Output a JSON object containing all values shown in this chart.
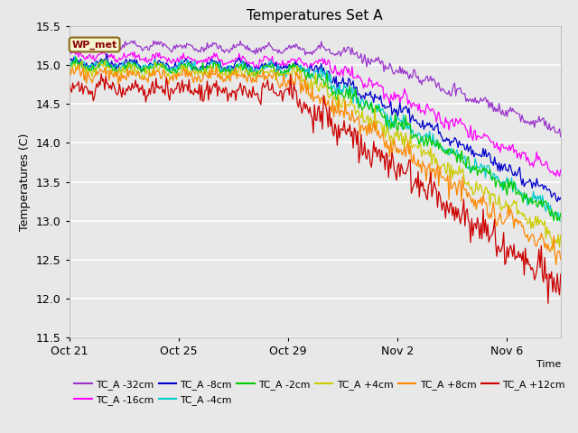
{
  "title": "Temperatures Set A",
  "xlabel": "Time",
  "ylabel": "Temperatures (C)",
  "ylim": [
    11.5,
    15.5
  ],
  "bg_color": "#e8e8e8",
  "series": [
    {
      "label": "TC_A -32cm",
      "color": "#9933cc",
      "start": 15.28,
      "flat_val": 15.18,
      "flat_end": 240,
      "end_val": 14.15,
      "noise": 0.035
    },
    {
      "label": "TC_A -16cm",
      "color": "#ff00ff",
      "start": 15.12,
      "flat_val": 15.02,
      "flat_end": 225,
      "end_val": 13.6,
      "noise": 0.04
    },
    {
      "label": "TC_A -8cm",
      "color": "#0000cc",
      "start": 15.03,
      "flat_val": 14.97,
      "flat_end": 215,
      "end_val": 13.3,
      "noise": 0.045
    },
    {
      "label": "TC_A -4cm",
      "color": "#00cccc",
      "start": 15.01,
      "flat_val": 14.95,
      "flat_end": 210,
      "end_val": 13.05,
      "noise": 0.05
    },
    {
      "label": "TC_A -2cm",
      "color": "#00cc00",
      "start": 14.99,
      "flat_val": 14.93,
      "flat_end": 205,
      "end_val": 13.05,
      "noise": 0.05
    },
    {
      "label": "TC_A +4cm",
      "color": "#cccc00",
      "start": 14.95,
      "flat_val": 14.88,
      "flat_end": 200,
      "end_val": 12.75,
      "noise": 0.06
    },
    {
      "label": "TC_A +8cm",
      "color": "#ff8800",
      "start": 14.9,
      "flat_val": 14.82,
      "flat_end": 195,
      "end_val": 12.55,
      "noise": 0.07
    },
    {
      "label": "TC_A +12cm",
      "color": "#cc0000",
      "start": 14.72,
      "flat_val": 14.65,
      "flat_end": 192,
      "end_val": 12.15,
      "noise": 0.1
    }
  ],
  "xtick_dates": [
    "Oct 21",
    "Oct 25",
    "Oct 29",
    "Nov 2",
    "Nov 6"
  ],
  "xtick_positions": [
    0,
    96,
    192,
    288,
    384
  ],
  "yticks": [
    11.5,
    12.0,
    12.5,
    13.0,
    13.5,
    14.0,
    14.5,
    15.0,
    15.5
  ],
  "annotation_text": "WP_met",
  "total_points": 432,
  "legend_ncol": 6,
  "legend_row1": [
    "TC_A -32cm",
    "TC_A -16cm",
    "TC_A -8cm",
    "TC_A -4cm",
    "TC_A -2cm",
    "TC_A +4cm"
  ],
  "legend_row2": [
    "TC_A +8cm",
    "TC_A +12cm"
  ]
}
